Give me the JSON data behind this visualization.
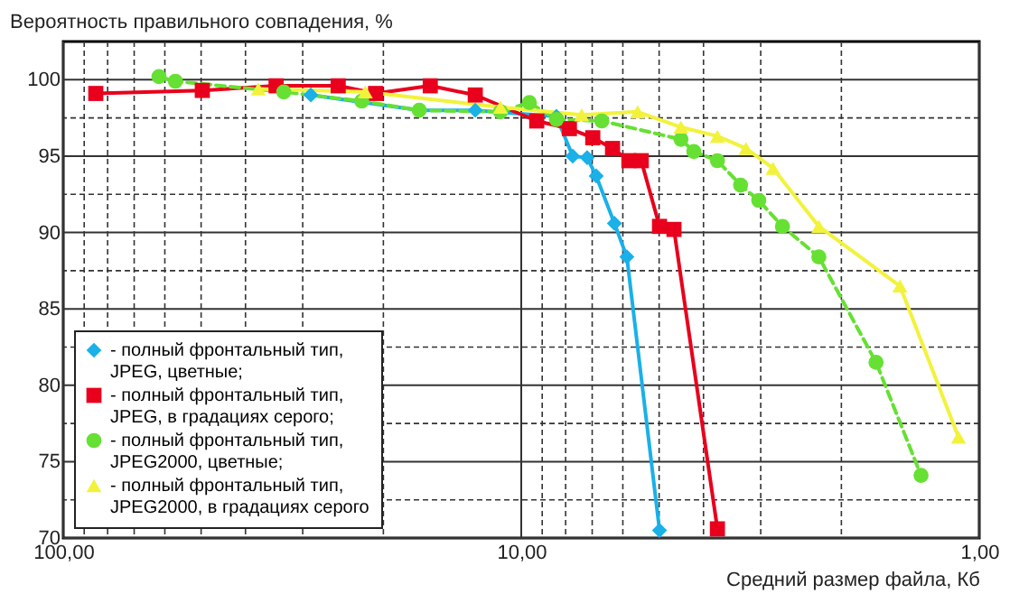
{
  "chart_data": {
    "type": "line",
    "xlabel": "Средний размер файла, Кб",
    "ylabel": "Вероятность правильного совпадения, %",
    "log": "x",
    "xlim": [
      100,
      1
    ],
    "xticks": [
      {
        "value": 100,
        "label": "100,00"
      },
      {
        "value": 90,
        "label": null
      },
      {
        "value": 80,
        "label": null
      },
      {
        "value": 70,
        "label": null
      },
      {
        "value": 60,
        "label": null
      },
      {
        "value": 50,
        "label": null
      },
      {
        "value": 40,
        "label": null
      },
      {
        "value": 30,
        "label": null
      },
      {
        "value": 20,
        "label": null
      },
      {
        "value": 10,
        "label": "10,00"
      },
      {
        "value": 9,
        "label": null
      },
      {
        "value": 8,
        "label": null
      },
      {
        "value": 7,
        "label": null
      },
      {
        "value": 6,
        "label": null
      },
      {
        "value": 5,
        "label": null
      },
      {
        "value": 4,
        "label": null
      },
      {
        "value": 3,
        "label": null
      },
      {
        "value": 2,
        "label": null
      },
      {
        "value": 1,
        "label": "1,00"
      }
    ],
    "ylim": [
      70,
      102.5
    ],
    "yticks": [
      70,
      {
        "value": 72.5,
        "label": null
      },
      75,
      {
        "value": 77.5,
        "label": null
      },
      80,
      {
        "value": 82.5,
        "label": null
      },
      85,
      {
        "value": 87.5,
        "label": null
      },
      90,
      {
        "value": 92.5,
        "label": null
      },
      95,
      {
        "value": 97.5,
        "label": null
      },
      100
    ],
    "grid": true,
    "legend": "bottom left",
    "series": [
      {
        "name": "- полный фронтальный тип, JPEG, цветные;",
        "color": "#1ab0e8",
        "marker": "diamond",
        "line_style": "solid",
        "x": [
          28.8,
          16.6,
          12.6,
          8.38,
          7.72,
          7.18,
          6.86,
          6.26,
          5.88,
          4.99
        ],
        "values": [
          99.0,
          98.0,
          98.0,
          97.6,
          95.0,
          94.9,
          93.7,
          90.6,
          88.4,
          70.5
        ]
      },
      {
        "name": "- полный фронтальный тип, JPEG, в градациях серого;",
        "color": "#e8001c",
        "marker": "square",
        "line_style": "solid",
        "x": [
          84.9,
          49.7,
          34.3,
          25.1,
          20.8,
          15.8,
          12.6,
          9.25,
          7.85,
          6.98,
          6.32,
          5.82,
          5.47,
          4.99,
          4.64,
          3.73
        ],
        "values": [
          99.1,
          99.3,
          99.6,
          99.6,
          99.1,
          99.6,
          99.0,
          97.3,
          96.8,
          96.2,
          95.5,
          94.7,
          94.7,
          90.4,
          90.2,
          70.6
        ]
      },
      {
        "name": "- полный фронтальный тип, JPEG2000, цветные;",
        "color": "#66e033",
        "marker": "circle",
        "line_style": "dashed",
        "x": [
          61.8,
          56.9,
          33.0,
          22.3,
          16.7,
          11.1,
          9.6,
          8.38,
          6.67,
          4.48,
          4.2,
          3.73,
          3.32,
          3.03,
          2.69,
          2.24,
          1.68,
          1.34
        ],
        "values": [
          100.2,
          99.9,
          99.2,
          98.6,
          98.0,
          97.9,
          98.5,
          97.4,
          97.3,
          96.1,
          95.3,
          94.7,
          93.1,
          92.1,
          90.4,
          88.4,
          81.5,
          74.1
        ]
      },
      {
        "name": "- полный фронтальный тип, JPEG2000, в градациях серого",
        "color": "#f2f23c",
        "marker": "triangle",
        "line_style": "solid",
        "x": [
          37.5,
          21.9,
          11.1,
          7.38,
          5.57,
          4.48,
          3.73,
          3.23,
          2.82,
          2.24,
          1.49,
          1.11
        ],
        "values": [
          99.4,
          99.2,
          98.2,
          97.7,
          97.9,
          96.9,
          96.3,
          95.5,
          94.2,
          90.4,
          86.5,
          76.6
        ]
      }
    ]
  }
}
